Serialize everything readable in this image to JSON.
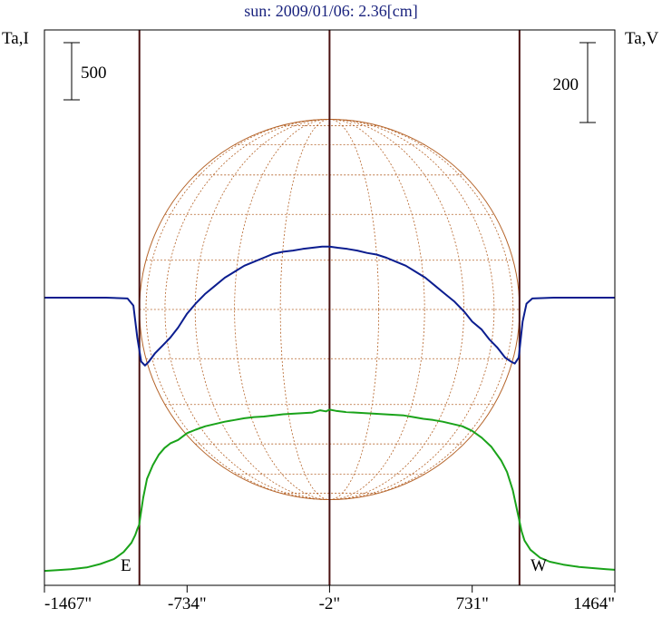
{
  "chart_data": {
    "type": "line",
    "title": "sun: 2009/01/06: 2.36[cm]",
    "left_axis_label": "Ta,I",
    "right_axis_label": "Ta,V",
    "x_ticks": [
      {
        "value": -1467,
        "label": "-1467\""
      },
      {
        "value": -734,
        "label": "-734\""
      },
      {
        "value": -2,
        "label": "-2\""
      },
      {
        "value": 731,
        "label": "731\""
      },
      {
        "value": 1464,
        "label": "1464\""
      }
    ],
    "xlim": [
      -1467,
      1464
    ],
    "solar_limbs": {
      "east": -979,
      "west": 974,
      "center": -2
    },
    "limb_labels": {
      "east": "E",
      "west": "W"
    },
    "left_scale_bar": {
      "label": "500",
      "value": 500
    },
    "right_scale_bar": {
      "label": "200",
      "value": 200
    },
    "series": [
      {
        "axis": "left",
        "color": "#1aa31a",
        "x": [
          -1467,
          -1400,
          -1330,
          -1250,
          -1180,
          -1110,
          -1060,
          -1020,
          -1000,
          -990,
          -980,
          -960,
          -940,
          -910,
          -880,
          -850,
          -820,
          -780,
          -734,
          -690,
          -640,
          -590,
          -540,
          -490,
          -440,
          -390,
          -340,
          -290,
          -240,
          -190,
          -140,
          -90,
          -50,
          -20,
          -2,
          30,
          80,
          130,
          180,
          230,
          280,
          330,
          380,
          430,
          480,
          530,
          580,
          630,
          680,
          731,
          780,
          830,
          880,
          910,
          940,
          960,
          975,
          985,
          1000,
          1030,
          1080,
          1130,
          1200,
          1280,
          1350,
          1420,
          1464
        ],
        "y": [
          15,
          22,
          30,
          45,
          75,
          118,
          180,
          260,
          330,
          380,
          420,
          650,
          820,
          940,
          1030,
          1090,
          1130,
          1160,
          1220,
          1250,
          1280,
          1300,
          1320,
          1335,
          1350,
          1360,
          1365,
          1375,
          1385,
          1390,
          1395,
          1400,
          1420,
          1410,
          1425,
          1415,
          1405,
          1400,
          1395,
          1390,
          1385,
          1380,
          1375,
          1360,
          1345,
          1335,
          1320,
          1300,
          1280,
          1240,
          1180,
          1100,
          980,
          880,
          720,
          560,
          440,
          360,
          280,
          200,
          130,
          95,
          70,
          50,
          40,
          30,
          25
        ]
      },
      {
        "axis": "right",
        "color": "#0b1d8f",
        "x": [
          -1467,
          -1300,
          -1150,
          -1040,
          -1010,
          -990,
          -970,
          -950,
          -930,
          -900,
          -860,
          -820,
          -780,
          -734,
          -690,
          -640,
          -590,
          -540,
          -490,
          -440,
          -390,
          -340,
          -290,
          -240,
          -190,
          -140,
          -90,
          -40,
          -2,
          40,
          90,
          140,
          190,
          240,
          290,
          340,
          390,
          440,
          490,
          540,
          590,
          640,
          690,
          731,
          780,
          820,
          860,
          900,
          930,
          950,
          970,
          990,
          1010,
          1040,
          1150,
          1300,
          1464
        ],
        "y": [
          0,
          0,
          0,
          -2,
          -20,
          -100,
          -160,
          -170,
          -160,
          -140,
          -120,
          -100,
          -75,
          -40,
          -15,
          10,
          30,
          50,
          65,
          80,
          90,
          100,
          110,
          115,
          118,
          122,
          125,
          128,
          128,
          125,
          122,
          118,
          112,
          108,
          100,
          90,
          80,
          65,
          50,
          30,
          10,
          -10,
          -35,
          -60,
          -80,
          -105,
          -125,
          -150,
          -160,
          -165,
          -150,
          -60,
          -15,
          -2,
          0,
          0,
          0
        ]
      }
    ]
  }
}
